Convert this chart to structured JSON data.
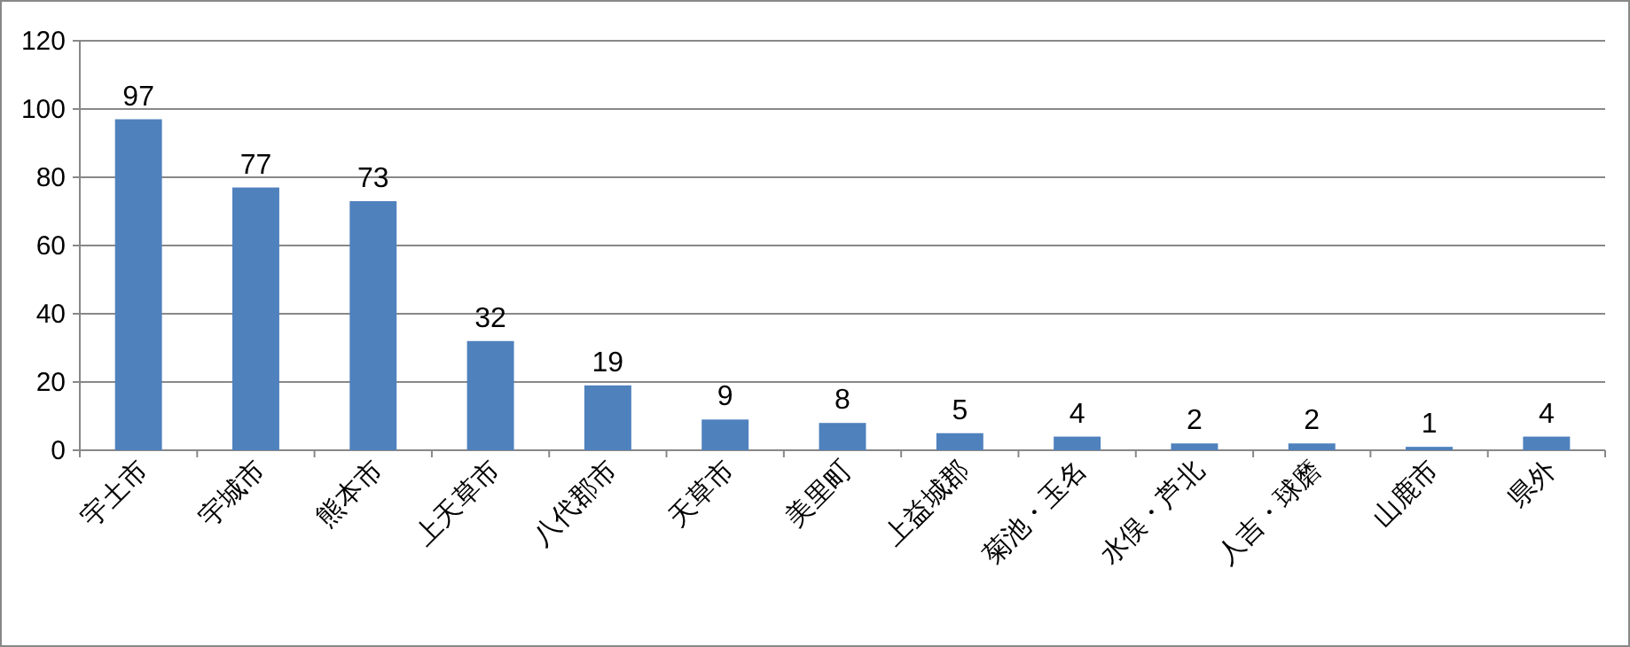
{
  "chart_data": {
    "type": "bar",
    "categories": [
      "宇土市",
      "宇城市",
      "熊本市",
      "上天草市",
      "八代郡市",
      "天草市",
      "美里町",
      "上益城郡",
      "菊池・玉名",
      "水俣・芦北",
      "人吉・球磨",
      "山鹿市",
      "県外"
    ],
    "values": [
      97,
      77,
      73,
      32,
      19,
      9,
      8,
      5,
      4,
      2,
      2,
      1,
      4
    ],
    "color": "#4f81bd",
    "ylim": [
      0,
      120
    ],
    "yticks": [
      0,
      20,
      40,
      60,
      80,
      100,
      120
    ],
    "grid": "y",
    "data_labels": true
  }
}
